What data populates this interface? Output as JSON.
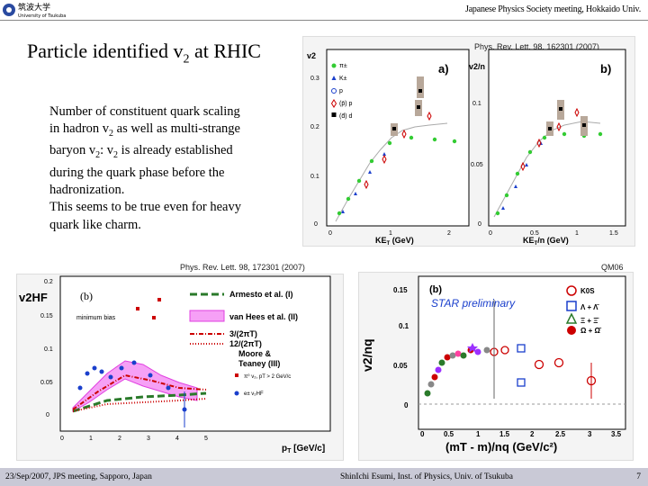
{
  "header": {
    "logo_text_jp": "筑波大学",
    "logo_text_en": "University of Tsukuba",
    "meeting": "Japanese Physics Society meeting, Hokkaido Univ."
  },
  "slide": {
    "title_main": "Particle identified v",
    "title_sub": "2",
    "title_tail": " at RHIC",
    "body_lines": [
      {
        "a": "Number of constituent quark scaling",
        "sub": "",
        "b": ""
      },
      {
        "a": "in hadron v",
        "sub": "2",
        "b": " as well as multi-strange"
      },
      {
        "a": "baryon v",
        "sub": "2",
        "b": ": v"
      },
      {
        "a": "during the quark phase before the",
        "sub": "",
        "b": ""
      },
      {
        "a": "hadronization.",
        "sub": "",
        "b": ""
      },
      {
        "a": "This seems to be true even for heavy",
        "sub": "",
        "b": ""
      },
      {
        "a": "quark like charm.",
        "sub": "",
        "b": ""
      }
    ],
    "line3_sub2": "2",
    "line3_tail": " is already established"
  },
  "fig1": {
    "ref": "Phys. Rev. Lett. 98, 162301 (2007)",
    "a": {
      "label": "a)",
      "ylabel": "v2",
      "xlabel": "KE",
      "xlabel_sub": "T",
      "xlabel_tail": " (GeV)",
      "xticks": [
        "0",
        "1",
        "2"
      ],
      "yticks": [
        "0",
        "0.1",
        "0.2",
        "0.3"
      ],
      "legend": [
        "π±",
        "K±",
        "p",
        "(p̄) p",
        "(d̄) d"
      ]
    },
    "b": {
      "label": "b)",
      "ylabel": "v2/n",
      "xlabel": "KE",
      "xlabel_sub": "T",
      "xlabel_tail": "/n (GeV)",
      "xticks": [
        "0",
        "0.5",
        "1",
        "1.5"
      ],
      "yticks": [
        "0",
        "0.05",
        "0.1"
      ]
    }
  },
  "fig2": {
    "ref": "Phys. Rev. Lett. 98, 172301 (2007)",
    "label": "(b)",
    "note": "minimum bias",
    "ylabel": "v2HF",
    "xlabel": "p",
    "xlabel_sub": "T",
    "xlabel_tail": " [GeV/c]",
    "xticks": [
      "0",
      "1",
      "2",
      "3",
      "4",
      "5"
    ],
    "yticks": [
      "0",
      "0.05",
      "0.1",
      "0.15",
      "0.2"
    ],
    "legend": [
      {
        "text": "Armesto et al. (I)",
        "color": "#2a7a2a",
        "style": "dash"
      },
      {
        "text": "van Hees et al. (II)",
        "color": "#e040e0",
        "style": "band"
      },
      {
        "text": "3/(2πT)",
        "color": "#cc0000",
        "style": "dotdash"
      },
      {
        "text": "12/(2πT)",
        "color": "#cc0000",
        "style": "dot"
      },
      {
        "text": "Moore &",
        "color": "",
        "style": ""
      },
      {
        "text": "Teaney (III)",
        "color": "",
        "style": ""
      }
    ],
    "legend2": [
      "π⁰ v₂, pT > 2 GeV/c",
      "e± v₂HF"
    ]
  },
  "fig3": {
    "ref": "QM06",
    "label": "(b)",
    "note": "STAR preliminary",
    "ylabel": "v2/nq",
    "xlabel": "(mT - m)/nq (GeV/c²)",
    "xticks": [
      "0",
      "0.5",
      "1",
      "1.5",
      "2",
      "2.5",
      "3",
      "3.5"
    ],
    "yticks": [
      "0",
      "0.05",
      "0.1",
      "0.15"
    ],
    "legend": [
      "K0S",
      "Λ + Λ̄",
      "Ξ + Ξ̄",
      "Ω + Ω̄"
    ]
  },
  "footer": {
    "left": "23/Sep/2007, JPS meeting, Sapporo, Japan",
    "center": "ShinIchi Esumi, Inst. of Physics, Univ. of Tsukuba",
    "page": "7"
  },
  "colors": {
    "footer_bg": "#c9c9d6",
    "red": "#cc0000",
    "blue": "#1a3fcc",
    "green": "#2a7a2a",
    "magenta": "#e040e0"
  }
}
